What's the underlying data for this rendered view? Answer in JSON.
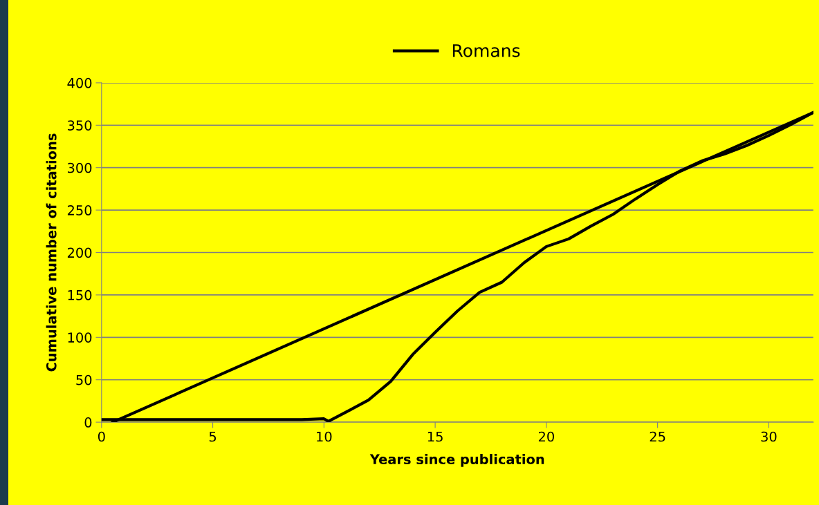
{
  "chart_data": {
    "type": "line",
    "xlabel": "Years since publication",
    "ylabel": "Cumulative number of citations",
    "xlim": [
      0,
      32
    ],
    "xticks": [
      0,
      5,
      10,
      15,
      20,
      25,
      30
    ],
    "ylim": [
      0,
      400
    ],
    "yticks": [
      0,
      50,
      100,
      150,
      200,
      250,
      300,
      350,
      400
    ],
    "grid": "y",
    "legend": "top",
    "marker": "none",
    "line_style": "solid",
    "series": [
      {
        "name": "Romans",
        "color": "#000000",
        "x": [
          0,
          1,
          2,
          3,
          4,
          5,
          6,
          7,
          8,
          9,
          10,
          10.2,
          11,
          12,
          13,
          14,
          15,
          16,
          17,
          18,
          19,
          20,
          21,
          22,
          23,
          24,
          25,
          26,
          27,
          28,
          29,
          30,
          31,
          32
        ],
        "values": [
          3,
          3,
          3,
          3,
          3,
          3,
          3,
          3,
          3,
          3,
          4,
          1,
          12,
          26,
          48,
          80,
          106,
          131,
          153,
          165,
          188,
          207,
          216,
          231,
          245,
          263,
          280,
          296,
          308,
          316,
          326,
          338,
          351,
          365
        ]
      },
      {
        "color": "#000000",
        "x": [
          0.5,
          32
        ],
        "values": [
          0,
          365
        ]
      }
    ]
  }
}
